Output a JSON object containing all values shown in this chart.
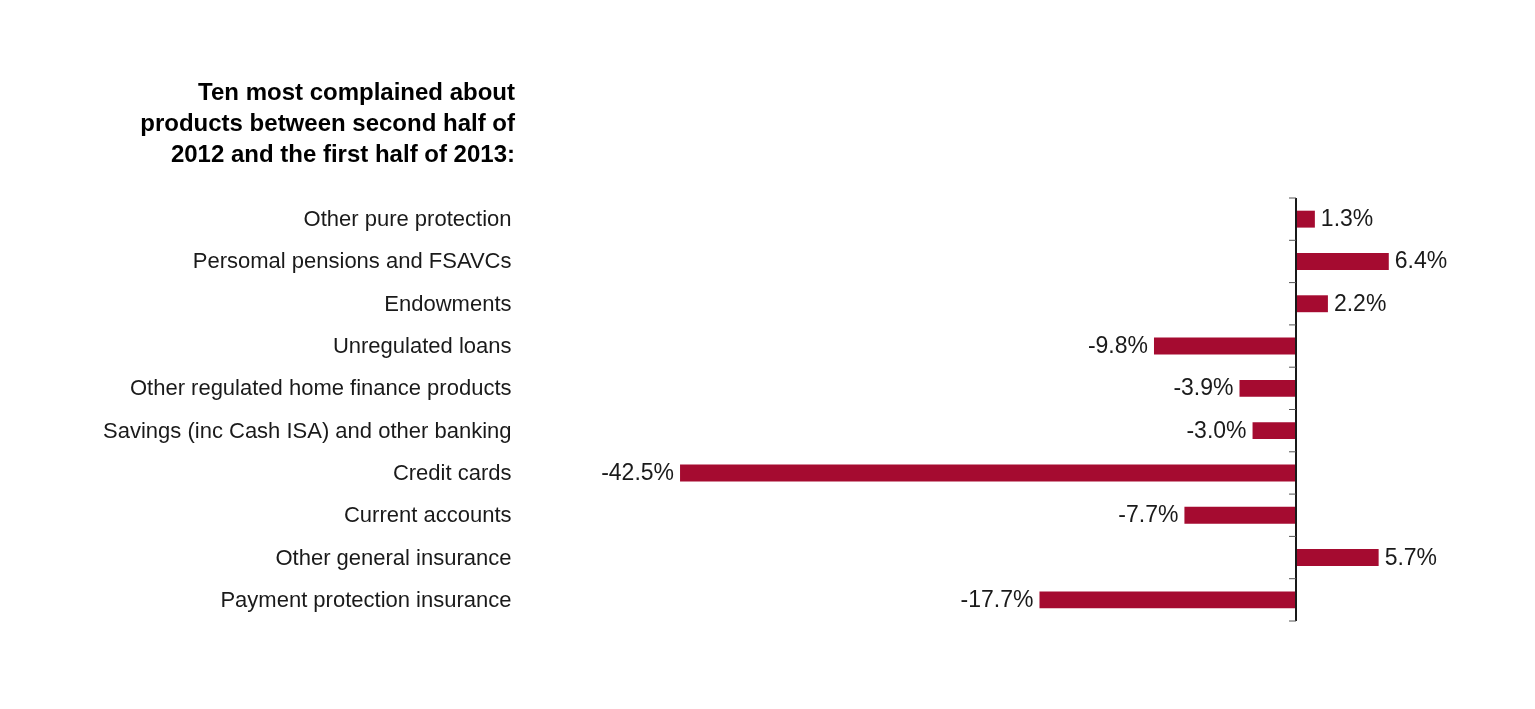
{
  "chart_data": {
    "type": "bar",
    "orientation": "horizontal",
    "title": "Ten most complained about products between second half of 2012 and the first half of 2013:",
    "categories": [
      "Other pure protection",
      "Persomal pensions and FSAVCs",
      "Endowments",
      "Unregulated loans",
      "Other regulated home finance products",
      "Savings (inc Cash ISA) and other banking",
      "Credit cards",
      "Current accounts",
      "Other general insurance",
      "Payment protection insurance"
    ],
    "values": [
      1.3,
      6.4,
      2.2,
      -9.8,
      -3.9,
      -3.0,
      -42.5,
      -7.7,
      5.7,
      -17.7
    ],
    "value_labels": [
      "1.3%",
      "6.4%",
      "2.2%",
      "-9.8%",
      "-3.9%",
      "-3.0%",
      "-42.5%",
      "-7.7%",
      "5.7%",
      "-17.7%"
    ],
    "color": "#a50b30",
    "tick_labels": "y"
  }
}
